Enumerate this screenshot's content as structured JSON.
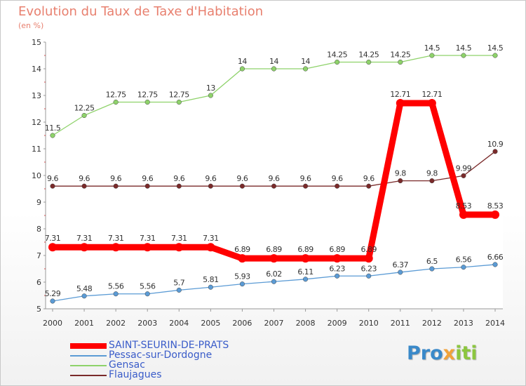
{
  "title": "Evolution du Taux de Taxe d'Habitation",
  "subtitle": "(en %)",
  "logo": [
    {
      "text": "Pro",
      "color": "#3a89c9"
    },
    {
      "text": "x",
      "color": "#f2a33a"
    },
    {
      "text": "iti",
      "color": "#8cc63f"
    }
  ],
  "chart_data": {
    "type": "line",
    "title": "Evolution du Taux de Taxe d'Habitation",
    "ylabel": "(en %)",
    "x": [
      "2000",
      "2001",
      "2002",
      "2003",
      "2004",
      "2005",
      "2006",
      "2007",
      "2008",
      "2009",
      "2010",
      "2011",
      "2012",
      "2013",
      "2014"
    ],
    "ylim": [
      5,
      15
    ],
    "yticks": [
      "5",
      "6",
      "7",
      "8",
      "9",
      "10",
      "11",
      "12",
      "13",
      "14",
      "15"
    ],
    "grid": false,
    "legend_position": "bottom-left",
    "series": [
      {
        "name": "SAINT-SEURIN-DE-PRATS",
        "color": "#ff0000",
        "values": [
          7.31,
          7.31,
          7.31,
          7.31,
          7.31,
          7.31,
          6.89,
          6.89,
          6.89,
          6.89,
          6.89,
          12.71,
          12.71,
          8.53,
          8.53
        ],
        "labels": [
          "7.31",
          "7.31",
          "7.31",
          "7.31",
          "7.31",
          "7.31",
          "6.89",
          "6.89",
          "6.89",
          "6.89",
          "6.89",
          "12.71",
          "12.71",
          "8.53",
          "8.53"
        ]
      },
      {
        "name": "Pessac-sur-Dordogne",
        "color": "#5b9bd5",
        "values": [
          5.29,
          5.48,
          5.56,
          5.56,
          5.7,
          5.81,
          5.93,
          6.02,
          6.11,
          6.23,
          6.23,
          6.37,
          6.5,
          6.56,
          6.66
        ],
        "labels": [
          "5.29",
          "5.48",
          "5.56",
          "5.56",
          "5.7",
          "5.81",
          "5.93",
          "6.02",
          "6.11",
          "6.23",
          "6.23",
          "6.37",
          "6.5",
          "6.56",
          "6.66"
        ]
      },
      {
        "name": "Gensac",
        "color": "#8ed26a",
        "values": [
          11.5,
          12.25,
          12.75,
          12.75,
          12.75,
          13,
          14,
          14,
          14,
          14.25,
          14.25,
          14.25,
          14.5,
          14.5,
          14.5
        ],
        "labels": [
          "11.5",
          "12.25",
          "12.75",
          "12.75",
          "12.75",
          "13",
          "14",
          "14",
          "14",
          "14.25",
          "14.25",
          "14.25",
          "14.5",
          "14.5",
          "14.5"
        ]
      },
      {
        "name": "Flaujagues",
        "color": "#7a2a2a",
        "values": [
          9.6,
          9.6,
          9.6,
          9.6,
          9.6,
          9.6,
          9.6,
          9.6,
          9.6,
          9.6,
          9.6,
          9.8,
          9.8,
          9.99,
          10.9
        ],
        "labels": [
          "9.6",
          "9.6",
          "9.6",
          "9.6",
          "9.6",
          "9.6",
          "9.6",
          "9.6",
          "9.6",
          "9.6",
          "9.6",
          "9.8",
          "9.8",
          "9.99",
          "10.9"
        ]
      }
    ]
  }
}
